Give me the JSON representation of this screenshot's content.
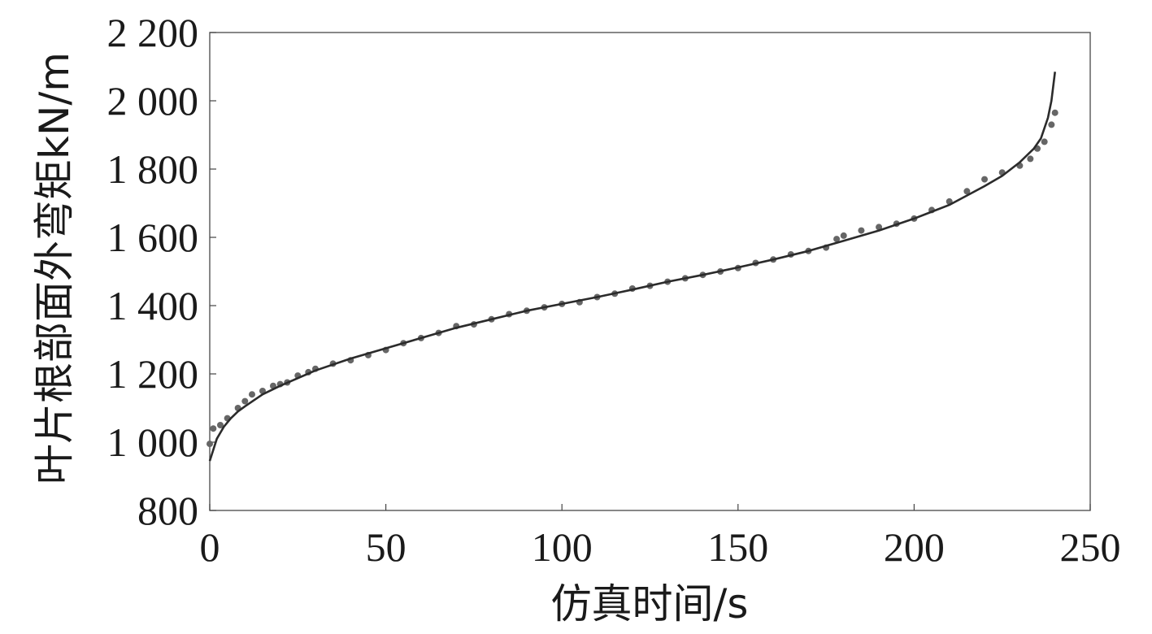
{
  "chart_data": {
    "type": "scatter",
    "title": "",
    "xlabel": "仿真时间/s",
    "ylabel": "叶片根部面外弯矩kN/m",
    "xlim": [
      0,
      250
    ],
    "ylim": [
      800,
      2200
    ],
    "x_ticks": [
      0,
      50,
      100,
      150,
      200,
      250
    ],
    "x_tick_labels": [
      "0",
      "50",
      "100",
      "150",
      "200",
      "250"
    ],
    "y_ticks": [
      800,
      1000,
      1200,
      1400,
      1600,
      1800,
      2000,
      2200
    ],
    "y_tick_labels": [
      "800",
      "1 000",
      "1 200",
      "1 400",
      "1 600",
      "1 800",
      "2 000",
      "2 200"
    ],
    "grid": false,
    "legend": "none",
    "colors": {
      "points": "#666666",
      "fit_line": "#2b2b2b",
      "frame": "#555555"
    },
    "series": [
      {
        "kind": "points",
        "x": [
          0,
          1,
          3,
          5,
          8,
          10,
          12,
          15,
          18,
          20,
          22,
          25,
          28,
          30,
          35,
          40,
          45,
          50,
          55,
          60,
          65,
          70,
          75,
          80,
          85,
          90,
          95,
          100,
          105,
          110,
          115,
          120,
          125,
          130,
          135,
          140,
          145,
          150,
          155,
          160,
          165,
          170,
          175,
          178,
          180,
          185,
          190,
          195,
          200,
          205,
          210,
          215,
          220,
          225,
          230,
          233,
          235,
          237,
          239,
          240
        ],
        "y": [
          995,
          1040,
          1050,
          1070,
          1100,
          1120,
          1140,
          1150,
          1165,
          1170,
          1175,
          1195,
          1205,
          1215,
          1230,
          1240,
          1255,
          1270,
          1290,
          1305,
          1320,
          1340,
          1345,
          1360,
          1375,
          1385,
          1395,
          1405,
          1410,
          1425,
          1435,
          1450,
          1458,
          1470,
          1480,
          1490,
          1500,
          1510,
          1525,
          1535,
          1550,
          1560,
          1570,
          1595,
          1605,
          1620,
          1630,
          1640,
          1655,
          1680,
          1705,
          1735,
          1770,
          1790,
          1810,
          1830,
          1860,
          1880,
          1930,
          1965
        ]
      },
      {
        "kind": "fit",
        "x": [
          0,
          2,
          4,
          6,
          8,
          10,
          15,
          20,
          30,
          40,
          50,
          60,
          70,
          80,
          90,
          100,
          110,
          120,
          130,
          140,
          150,
          160,
          170,
          180,
          190,
          200,
          210,
          220,
          225,
          230,
          234,
          236,
          238,
          239,
          240
        ],
        "y": [
          945,
          1010,
          1045,
          1070,
          1090,
          1105,
          1140,
          1165,
          1210,
          1245,
          1275,
          1305,
          1335,
          1360,
          1385,
          1405,
          1425,
          1447,
          1470,
          1490,
          1512,
          1535,
          1560,
          1590,
          1620,
          1655,
          1695,
          1750,
          1780,
          1820,
          1860,
          1890,
          1950,
          2000,
          2085
        ]
      }
    ]
  }
}
